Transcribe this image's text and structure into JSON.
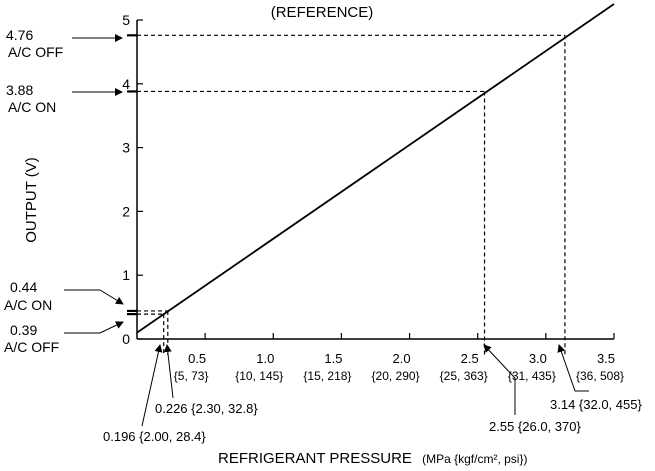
{
  "chart_data": {
    "type": "line",
    "title": "(REFERENCE)",
    "xlabel": "REFRIGERANT PRESSURE",
    "xlabel_unit": "(MPa {kgf/cm², psi})",
    "ylabel": "OUTPUT (V)",
    "xlim": [
      0,
      3.5
    ],
    "ylim": [
      0,
      5
    ],
    "grid": false,
    "x_ticks": [
      {
        "value": 0.5,
        "label": "0.5",
        "sub": "{5, 73}"
      },
      {
        "value": 1.0,
        "label": "1.0",
        "sub": "{10, 145}"
      },
      {
        "value": 1.5,
        "label": "1.5",
        "sub": "{15, 218}"
      },
      {
        "value": 2.0,
        "label": "2.0",
        "sub": "{20, 290}"
      },
      {
        "value": 2.5,
        "label": "2.5",
        "sub": "{25, 363}"
      },
      {
        "value": 3.0,
        "label": "3.0",
        "sub": "{31, 435}"
      },
      {
        "value": 3.5,
        "label": "3.5",
        "sub": "{36, 508}"
      }
    ],
    "y_ticks": [
      {
        "value": 0,
        "label": "0"
      },
      {
        "value": 1,
        "label": "1"
      },
      {
        "value": 2,
        "label": "2"
      },
      {
        "value": 3,
        "label": "3"
      },
      {
        "value": 4,
        "label": "4"
      },
      {
        "value": 5,
        "label": "5"
      }
    ],
    "series": [
      {
        "x": [
          0,
          3.5
        ],
        "y": [
          0.1,
          5.25
        ]
      }
    ],
    "reference_points": [
      {
        "x": 3.14,
        "y": 4.76,
        "y_label": "4.76",
        "y_state": "A/C OFF",
        "x_label": "3.14 {32.0, 455}"
      },
      {
        "x": 2.55,
        "y": 3.88,
        "y_label": "3.88",
        "y_state": "A/C ON",
        "x_label": "2.55 {26.0, 370}"
      },
      {
        "x": 0.226,
        "y": 0.44,
        "y_label": "0.44",
        "y_state": "A/C ON",
        "x_label": "0.226 {2.30, 32.8}"
      },
      {
        "x": 0.196,
        "y": 0.39,
        "y_label": "0.39",
        "y_state": "A/C OFF",
        "x_label": "0.196 {2.00, 28.4}"
      }
    ]
  }
}
